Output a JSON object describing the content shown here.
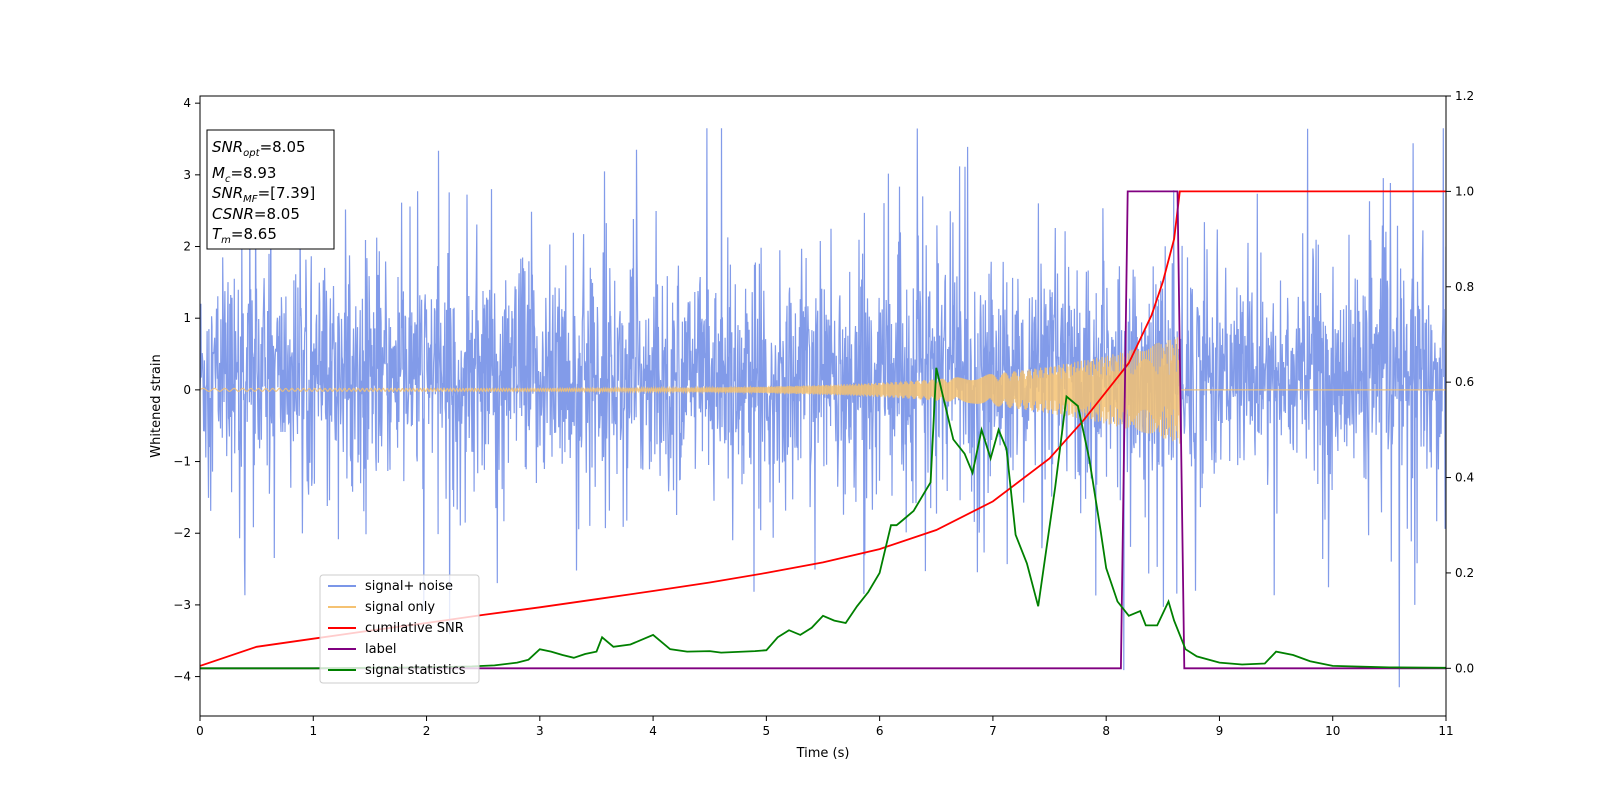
{
  "chart_data": {
    "type": "line",
    "xlabel": "Time (s)",
    "ylabel": "Whitened strain",
    "xlim": [
      0,
      11
    ],
    "ylim_left": [
      -4.55,
      4.1
    ],
    "ylim_right": [
      -0.1,
      1.2
    ],
    "x_ticks": [
      0,
      1,
      2,
      3,
      4,
      5,
      6,
      7,
      8,
      9,
      10,
      11
    ],
    "y_left_ticks": [
      4,
      3,
      2,
      1,
      0,
      -1,
      -2,
      -3,
      -4
    ],
    "y_right_ticks": [
      1.2,
      1.0,
      0.8,
      0.6,
      0.4,
      0.2,
      0.0
    ],
    "grid": false,
    "legend_position": "lower-left",
    "legend": [
      {
        "label": "signal+ noise",
        "color": "#7b96e8"
      },
      {
        "label": "signal only",
        "color": "#f5c272"
      },
      {
        "label": "cumilative SNR",
        "color": "#ff0000"
      },
      {
        "label": "label",
        "color": "#800080"
      },
      {
        "label": "signal statistics",
        "color": "#008000"
      }
    ],
    "info_box": {
      "snr_opt": {
        "name": "SNR",
        "sub": "opt",
        "value": "=8.05"
      },
      "mc": {
        "name": "M",
        "sub": "c",
        "value": "=8.93"
      },
      "snr_mf": {
        "name": "SNR",
        "sub": "MF",
        "value": "=[7.39]"
      },
      "csnr": {
        "name": "CSNR",
        "value": "=8.05"
      },
      "tm": {
        "name": "T",
        "sub": "m",
        "value": "=8.65"
      }
    },
    "series": [
      {
        "name": "signal+ noise",
        "axis": "left",
        "color": "#7b96e8",
        "description": "whitened noise, spread about -1.9..2.7, extremes ~ -4.15..3.65",
        "x_range": [
          0,
          11
        ],
        "envelope": [
          -1.9,
          2.7
        ]
      },
      {
        "name": "signal only",
        "axis": "left",
        "color": "#f5c272",
        "chirp_start": 0,
        "chirp_end": 8.65,
        "amplitude_start": 0.02,
        "amplitude_end": 0.75
      },
      {
        "name": "cumilative SNR",
        "axis": "right",
        "color": "#ff0000",
        "x": [
          0,
          0.5,
          1,
          1.5,
          2,
          2.5,
          3,
          3.5,
          4,
          4.5,
          5,
          5.5,
          6,
          6.5,
          7,
          7.5,
          7.8,
          8.0,
          8.2,
          8.4,
          8.5,
          8.6,
          8.65,
          9,
          10,
          11
        ],
        "values": [
          0.005,
          0.045,
          0.062,
          0.079,
          0.095,
          0.112,
          0.128,
          0.145,
          0.162,
          0.18,
          0.2,
          0.222,
          0.25,
          0.29,
          0.35,
          0.44,
          0.52,
          0.58,
          0.64,
          0.74,
          0.81,
          0.9,
          1.0,
          1.0,
          1.0,
          1.0
        ]
      },
      {
        "name": "label",
        "axis": "right",
        "color": "#800080",
        "x": [
          0,
          8.13,
          8.19,
          8.63,
          8.69,
          11
        ],
        "values": [
          0,
          0,
          1,
          1,
          0,
          0
        ]
      },
      {
        "name": "signal statistics",
        "axis": "right",
        "color": "#008000",
        "x": [
          0,
          0.5,
          1,
          1.5,
          2,
          2.4,
          2.6,
          2.8,
          2.9,
          3.0,
          3.1,
          3.2,
          3.3,
          3.4,
          3.5,
          3.55,
          3.65,
          3.8,
          4.0,
          4.05,
          4.15,
          4.3,
          4.5,
          4.6,
          4.7,
          4.8,
          4.9,
          5.0,
          5.1,
          5.2,
          5.3,
          5.4,
          5.5,
          5.6,
          5.7,
          5.8,
          5.9,
          6.0,
          6.1,
          6.15,
          6.2,
          6.3,
          6.4,
          6.45,
          6.5,
          6.55,
          6.65,
          6.75,
          6.82,
          6.9,
          6.98,
          7.05,
          7.12,
          7.2,
          7.3,
          7.4,
          7.55,
          7.65,
          7.75,
          7.85,
          7.95,
          8.0,
          8.1,
          8.2,
          8.3,
          8.35,
          8.45,
          8.55,
          8.6,
          8.7,
          8.8,
          9.0,
          9.2,
          9.4,
          9.5,
          9.65,
          9.8,
          10.0,
          10.5,
          11
        ],
        "values": [
          0.0,
          0.0,
          0.0,
          0.001,
          0.002,
          0.004,
          0.006,
          0.012,
          0.018,
          0.04,
          0.035,
          0.028,
          0.022,
          0.03,
          0.035,
          0.065,
          0.045,
          0.05,
          0.07,
          0.06,
          0.04,
          0.035,
          0.036,
          0.033,
          0.034,
          0.035,
          0.036,
          0.038,
          0.065,
          0.08,
          0.07,
          0.085,
          0.11,
          0.1,
          0.095,
          0.13,
          0.16,
          0.2,
          0.3,
          0.3,
          0.31,
          0.33,
          0.37,
          0.39,
          0.63,
          0.58,
          0.48,
          0.45,
          0.41,
          0.5,
          0.44,
          0.5,
          0.46,
          0.28,
          0.22,
          0.13,
          0.38,
          0.57,
          0.55,
          0.44,
          0.29,
          0.21,
          0.14,
          0.11,
          0.12,
          0.09,
          0.09,
          0.14,
          0.1,
          0.04,
          0.025,
          0.012,
          0.008,
          0.01,
          0.035,
          0.028,
          0.015,
          0.005,
          0.002,
          0.001
        ]
      }
    ]
  }
}
